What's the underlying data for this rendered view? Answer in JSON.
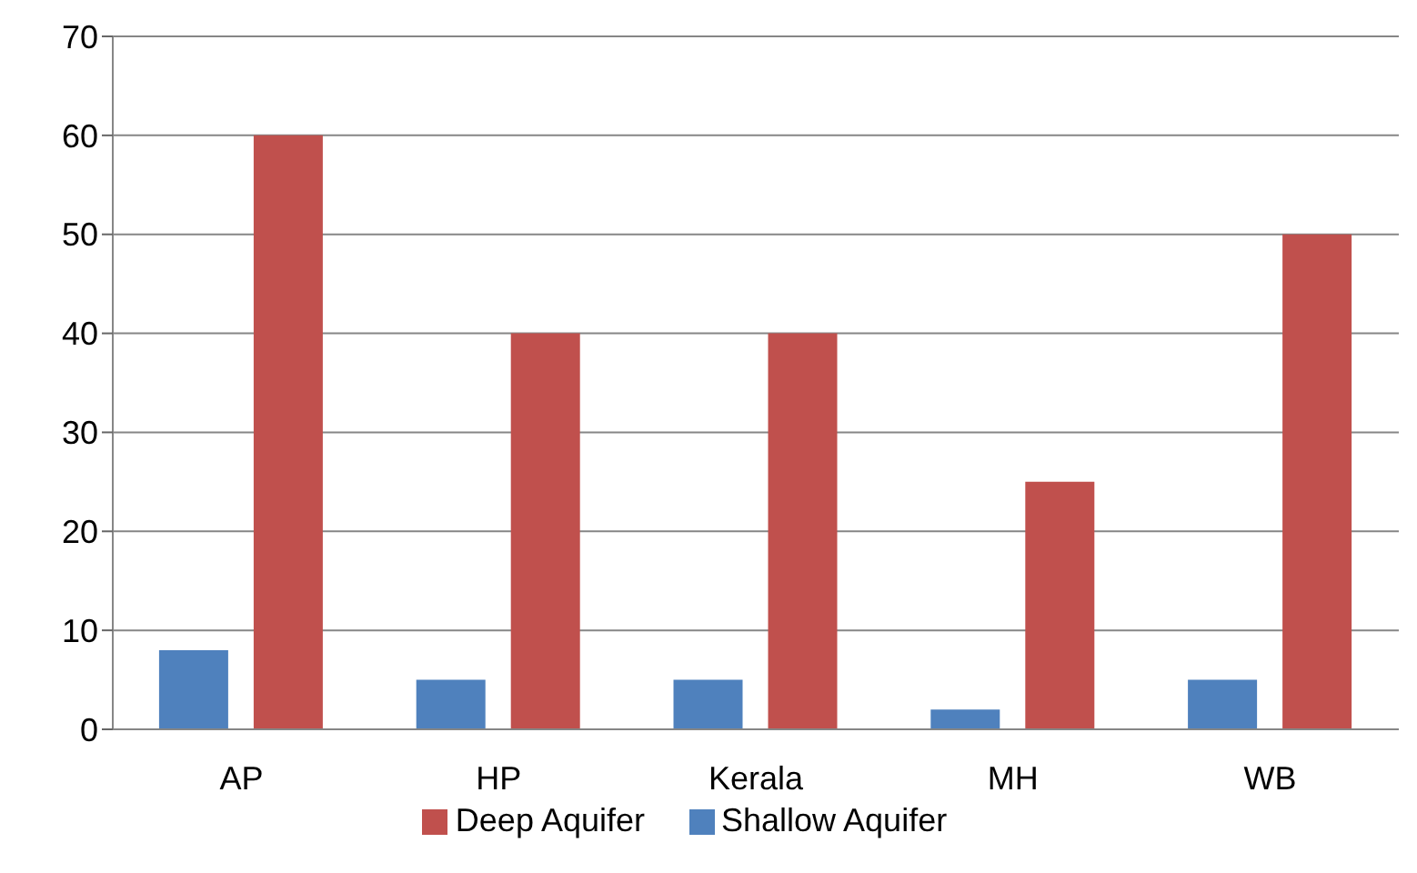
{
  "chart_data": {
    "type": "bar",
    "categories": [
      "AP",
      "HP",
      "Kerala",
      "MH",
      "WB"
    ],
    "series": [
      {
        "name": "Shallow Aquifer",
        "color": "#4f81bd",
        "values": [
          8,
          5,
          5,
          2,
          5
        ]
      },
      {
        "name": "Deep Aquifer",
        "color": "#c0504d",
        "values": [
          60,
          40,
          40,
          25,
          50
        ]
      }
    ],
    "ylim": [
      0,
      70
    ],
    "yticks": [
      0,
      10,
      20,
      30,
      40,
      50,
      60,
      70
    ],
    "grid": "y",
    "legend": "bottom"
  }
}
